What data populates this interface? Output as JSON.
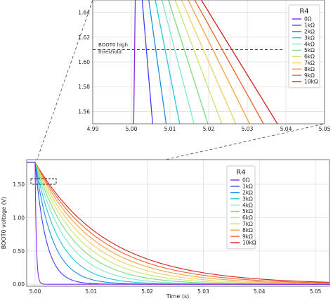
{
  "chart_data": [
    {
      "id": "main",
      "type": "line",
      "xlabel": "Time (s)",
      "ylabel": "BOOT0 voltage (V)",
      "xlim": [
        4.9985,
        5.0525
      ],
      "ylim": [
        -0.03,
        1.87
      ],
      "xticks": [
        {
          "v": 5.0,
          "label": "5.00"
        },
        {
          "v": 5.01,
          "label": "5.01"
        },
        {
          "v": 5.02,
          "label": "5.02"
        },
        {
          "v": 5.03,
          "label": "5.03"
        },
        {
          "v": 5.04,
          "label": "5.04"
        },
        {
          "v": 5.05,
          "label": "5.05"
        }
      ],
      "yticks": [
        {
          "v": 0,
          "label": "0.00"
        },
        {
          "v": 0.5,
          "label": "0.50"
        },
        {
          "v": 1.0,
          "label": "1.00"
        },
        {
          "v": 1.5,
          "label": "1.50"
        }
      ],
      "grid": true,
      "legend": {
        "title": "R4",
        "position": "upper-right"
      },
      "series": [
        {
          "name": "0Ω",
          "color": "#8a2be2",
          "tau": 0.00022
        },
        {
          "name": "1kΩ",
          "color": "#3f3fff",
          "tau": 0.00195
        },
        {
          "name": "2kΩ",
          "color": "#1a8fe6",
          "tau": 0.0031
        },
        {
          "name": "3kΩ",
          "color": "#22c8d8",
          "tau": 0.0043
        },
        {
          "name": "4kΩ",
          "color": "#7fe8c8",
          "tau": 0.0055
        },
        {
          "name": "5kΩ",
          "color": "#7ddc7d",
          "tau": 0.0067
        },
        {
          "name": "6kΩ",
          "color": "#c8e66e",
          "tau": 0.0079
        },
        {
          "name": "7kΩ",
          "color": "#f0d060",
          "tau": 0.0091
        },
        {
          "name": "8kΩ",
          "color": "#f5a040",
          "tau": 0.0103
        },
        {
          "name": "9kΩ",
          "color": "#f06030",
          "tau": 0.0115
        },
        {
          "name": "10kΩ",
          "color": "#d42020",
          "tau": 0.0127
        }
      ],
      "v_start": 1.83,
      "t_start": 5.0
    },
    {
      "id": "inset",
      "type": "line",
      "xlim": [
        4.99,
        5.05
      ],
      "ylim": [
        1.55,
        1.65
      ],
      "xticks": [
        {
          "v": 4.99,
          "label": "4.99"
        },
        {
          "v": 5.0,
          "label": "5.00"
        },
        {
          "v": 5.01,
          "label": "5.01"
        },
        {
          "v": 5.02,
          "label": "5.02"
        },
        {
          "v": 5.03,
          "label": "5.03"
        },
        {
          "v": 5.04,
          "label": "5.04"
        },
        {
          "v": 5.05,
          "label": "5.05"
        }
      ],
      "yticks": [
        {
          "v": 1.56,
          "label": "1.56"
        },
        {
          "v": 1.58,
          "label": "1.58"
        },
        {
          "v": 1.6,
          "label": "1.60"
        },
        {
          "v": 1.62,
          "label": "1.62"
        },
        {
          "v": 1.64,
          "label": "1.64"
        }
      ],
      "grid": true,
      "threshold": {
        "value": 1.61,
        "label_line1": "BOOT0 high",
        "label_line2": "threshold"
      },
      "legend": {
        "title": "R4",
        "position": "upper-right"
      },
      "lines": [
        {
          "name": "0Ω",
          "x_at_top": 5.001,
          "x_at_bottom": 5.0006
        },
        {
          "name": "1kΩ",
          "x_at_top": 5.0028,
          "x_at_bottom": 5.0055
        },
        {
          "name": "2kΩ",
          "x_at_top": 5.0045,
          "x_at_bottom": 5.009
        },
        {
          "name": "3kΩ",
          "x_at_top": 5.0062,
          "x_at_bottom": 5.0125
        },
        {
          "name": "4kΩ",
          "x_at_top": 5.0079,
          "x_at_bottom": 5.0162
        },
        {
          "name": "5kΩ",
          "x_at_top": 5.0096,
          "x_at_bottom": 5.0198
        },
        {
          "name": "6kΩ",
          "x_at_top": 5.0113,
          "x_at_bottom": 5.0234
        },
        {
          "name": "7kΩ",
          "x_at_top": 5.013,
          "x_at_bottom": 5.027
        },
        {
          "name": "8kΩ",
          "x_at_top": 5.0147,
          "x_at_bottom": 5.0306
        },
        {
          "name": "9kΩ",
          "x_at_top": 5.0164,
          "x_at_bottom": 5.0342
        },
        {
          "name": "10kΩ",
          "x_at_top": 5.0181,
          "x_at_bottom": 5.0378
        }
      ]
    }
  ]
}
